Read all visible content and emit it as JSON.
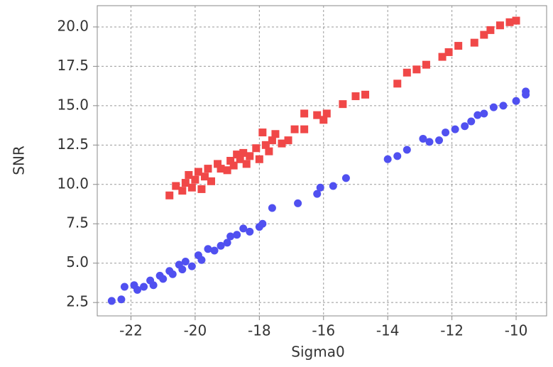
{
  "chart_data": {
    "type": "scatter",
    "x_label": "Sigma0",
    "y_label": "SNR",
    "xlim": [
      -23.05,
      -9.05
    ],
    "ylim": [
      1.65,
      21.35
    ],
    "xticks": [
      -22,
      -20,
      -18,
      -16,
      -14,
      -12,
      -10
    ],
    "yticks": [
      2.5,
      {
        "value": 5,
        "label": "5.0"
      },
      7.5,
      {
        "value": 10,
        "label": "10.0"
      },
      12.5,
      {
        "value": 15,
        "label": "15.0"
      },
      17.5,
      {
        "value": 20,
        "label": "20.0"
      }
    ],
    "grid": true,
    "series": [
      {
        "color": "#f04848",
        "marker": "square",
        "x": [
          -20.8,
          -20.6,
          -20.4,
          -20.3,
          -20.2,
          -20.1,
          -20.0,
          -19.9,
          -19.8,
          -19.7,
          -19.6,
          -19.5,
          -19.3,
          -19.2,
          -19.0,
          -18.9,
          -18.8,
          -18.7,
          -18.6,
          -18.5,
          -18.4,
          -18.3,
          -18.1,
          -18.0,
          -17.9,
          -17.8,
          -17.7,
          -17.6,
          -17.5,
          -17.3,
          -17.1,
          -16.9,
          -16.6,
          -16.6,
          -16.2,
          -16.0,
          -15.9,
          -15.4,
          -15.0,
          -14.7,
          -13.7,
          -13.4,
          -13.1,
          -12.8,
          -12.3,
          -12.1,
          -11.8,
          -11.3,
          -11.0,
          -10.8,
          -10.5,
          -10.2,
          -10.0
        ],
        "values": [
          9.3,
          9.9,
          9.6,
          10.1,
          10.6,
          9.8,
          10.3,
          10.8,
          9.7,
          10.5,
          11.0,
          10.2,
          11.3,
          11.0,
          10.9,
          11.5,
          11.2,
          11.9,
          11.6,
          12.0,
          11.3,
          11.8,
          12.3,
          11.6,
          13.3,
          12.5,
          12.1,
          12.8,
          13.2,
          12.6,
          12.8,
          13.5,
          14.5,
          13.5,
          14.4,
          14.1,
          14.5,
          15.1,
          15.6,
          15.7,
          16.4,
          17.1,
          17.3,
          17.6,
          18.1,
          18.4,
          18.8,
          19.0,
          19.5,
          19.8,
          20.1,
          20.3,
          20.4
        ]
      },
      {
        "color": "#5050f0",
        "marker": "circle",
        "x": [
          -22.6,
          -22.3,
          -22.2,
          -21.9,
          -21.8,
          -21.6,
          -21.4,
          -21.3,
          -21.1,
          -21.0,
          -20.8,
          -20.7,
          -20.5,
          -20.4,
          -20.3,
          -20.1,
          -19.9,
          -19.8,
          -19.6,
          -19.4,
          -19.2,
          -19.0,
          -18.9,
          -18.7,
          -18.5,
          -18.3,
          -18.0,
          -17.9,
          -17.6,
          -16.8,
          -16.2,
          -16.1,
          -15.7,
          -15.3,
          -14.0,
          -13.7,
          -13.4,
          -12.9,
          -12.7,
          -12.4,
          -12.2,
          -11.9,
          -11.6,
          -11.4,
          -11.2,
          -11.0,
          -10.7,
          -10.4,
          -10.0,
          -9.7,
          -9.7
        ],
        "values": [
          2.6,
          2.7,
          3.5,
          3.6,
          3.3,
          3.5,
          3.9,
          3.6,
          4.2,
          4.0,
          4.5,
          4.3,
          4.9,
          4.6,
          5.1,
          4.8,
          5.5,
          5.2,
          5.9,
          5.8,
          6.1,
          6.3,
          6.7,
          6.8,
          7.2,
          7.0,
          7.3,
          7.5,
          8.5,
          8.8,
          9.4,
          9.8,
          9.9,
          10.4,
          11.6,
          11.8,
          12.2,
          12.9,
          12.7,
          12.8,
          13.3,
          13.5,
          13.7,
          14.0,
          14.4,
          14.5,
          14.9,
          15.0,
          15.3,
          15.7,
          15.9
        ]
      }
    ]
  }
}
